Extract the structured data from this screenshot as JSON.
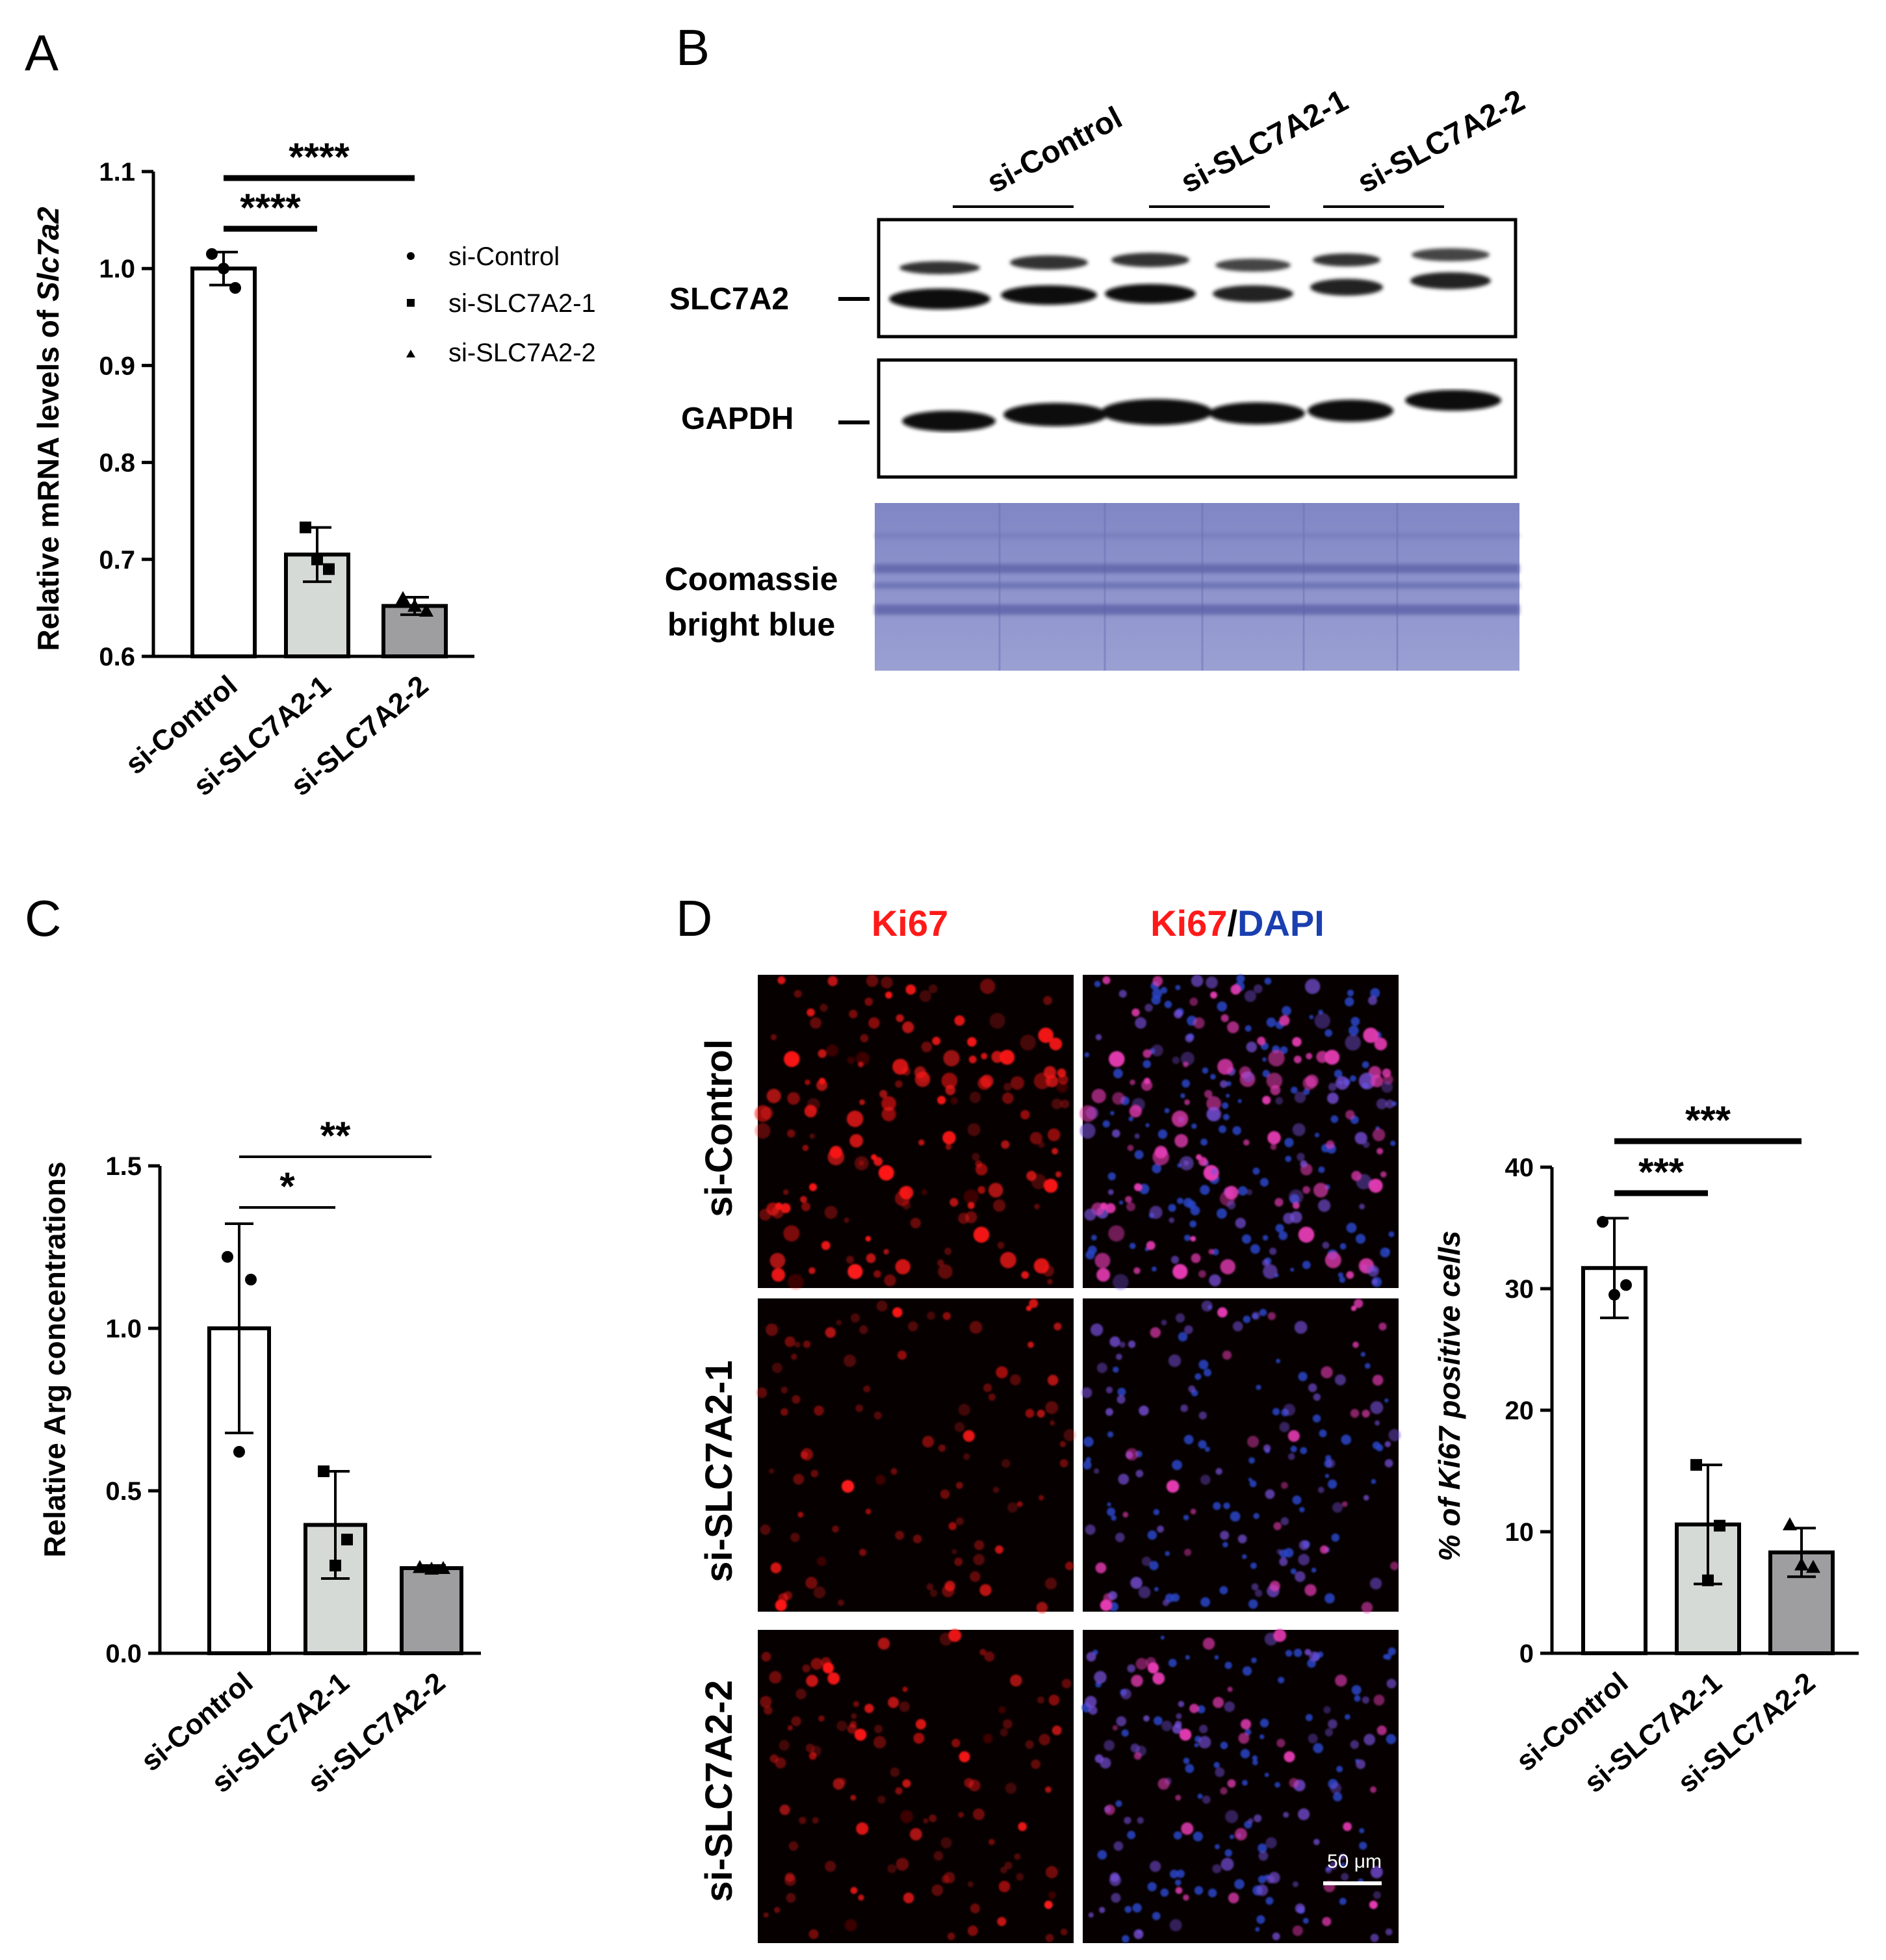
{
  "panels": {
    "A": {
      "letter": "A"
    },
    "B": {
      "letter": "B"
    },
    "C": {
      "letter": "C"
    },
    "D": {
      "letter": "D"
    }
  },
  "colors": {
    "control": "#ffffff",
    "si1": "#d6dad6",
    "si2": "#9e9ea0",
    "red": "#ff1a1a",
    "blue": "#1f3fb5",
    "coomassie": "#8b91c9"
  },
  "chart_data": [
    {
      "panel": "A",
      "type": "bar",
      "ylabel_prefix": "Relative mRNA levels of ",
      "ylabel_italic": "Slc7a2",
      "ylim": [
        0.6,
        1.1
      ],
      "yticks": [
        "0.6",
        "0.7",
        "0.8",
        "0.9",
        "1.0",
        "1.1"
      ],
      "categories": [
        "si-Control",
        "si-SLC7A2-1",
        "si-SLC7A2-2"
      ],
      "values": [
        1.0,
        0.705,
        0.652
      ],
      "errors": [
        0.017,
        0.028,
        0.009
      ],
      "points": [
        [
          1.015,
          0.98,
          1.0
        ],
        [
          0.733,
          0.69,
          0.7
        ],
        [
          0.66,
          0.647,
          0.652
        ]
      ],
      "markers": [
        "circle",
        "square",
        "triangle"
      ],
      "legend": [
        "si-Control",
        "si-SLC7A2-1",
        "si-SLC7A2-2"
      ],
      "significance": [
        {
          "from": 0,
          "to": 1,
          "label": "****"
        },
        {
          "from": 0,
          "to": 2,
          "label": "****"
        }
      ]
    },
    {
      "panel": "C",
      "type": "bar",
      "ylabel": "Relative Arg concentrations",
      "ylim": [
        0.0,
        1.5
      ],
      "yticks": [
        "0.0",
        "0.5",
        "1.0",
        "1.5"
      ],
      "categories": [
        "si-Control",
        "si-SLC7A2-1",
        "si-SLC7A2-2"
      ],
      "values": [
        1.0,
        0.395,
        0.262
      ],
      "errors": [
        0.322,
        0.165,
        0.008
      ],
      "points": [
        [
          1.22,
          1.15,
          0.62
        ],
        [
          0.56,
          0.35,
          0.27
        ],
        [
          0.265,
          0.262,
          0.26
        ]
      ],
      "markers": [
        "circle",
        "square",
        "triangle"
      ],
      "significance": [
        {
          "from": 0,
          "to": 1,
          "label": "*"
        },
        {
          "from": 0,
          "to": 2,
          "label": "**"
        }
      ]
    },
    {
      "panel": "D",
      "type": "bar",
      "ylabel": "% of Ki67 positive cells",
      "ylim": [
        0,
        40
      ],
      "yticks": [
        "0",
        "10",
        "20",
        "30",
        "40"
      ],
      "categories": [
        "si-Control",
        "si-SLC7A2-1",
        "si-SLC7A2-2"
      ],
      "values": [
        31.7,
        10.6,
        8.3
      ],
      "errors": [
        4.1,
        4.9,
        2.0
      ],
      "points": [
        [
          35.5,
          30.3,
          29.5
        ],
        [
          15.5,
          10.5,
          6.0
        ],
        [
          10.6,
          7.1,
          7.3
        ]
      ],
      "markers": [
        "circle",
        "square",
        "triangle"
      ],
      "significance": [
        {
          "from": 0,
          "to": 1,
          "label": "***"
        },
        {
          "from": 0,
          "to": 2,
          "label": "***"
        }
      ]
    }
  ],
  "blot": {
    "lane_groups": [
      "si-Control",
      "si-SLC7A2-1",
      "si-SLC7A2-2"
    ],
    "rows": [
      {
        "label": "SLC7A2"
      },
      {
        "label": "GAPDH"
      },
      {
        "label_line1": "Coomassie",
        "label_line2": "bright blue"
      }
    ]
  },
  "microscopy": {
    "column_headers": {
      "ki67": "Ki67",
      "merge_red": "Ki67",
      "merge_sep": "/",
      "merge_blue": "DAPI"
    },
    "row_labels": [
      "si-Control",
      "si-SLC7A2-1",
      "si-SLC7A2-2"
    ],
    "cell_density": [
      160,
      95,
      110
    ],
    "scale_bar": "50 μm"
  }
}
